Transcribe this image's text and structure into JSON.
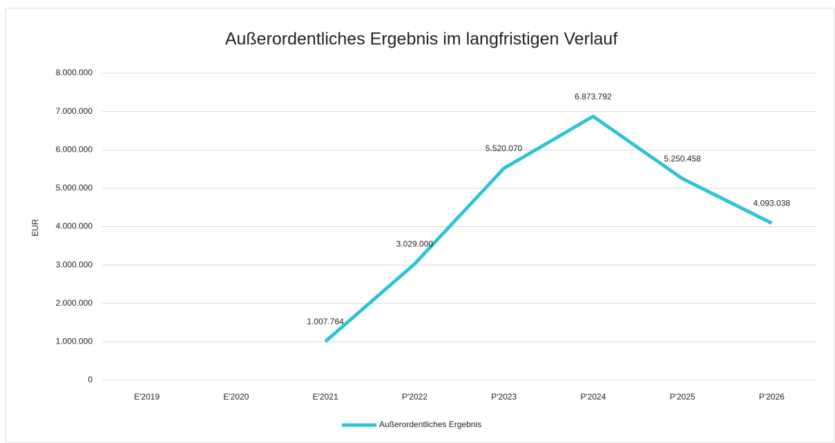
{
  "chart_data": {
    "type": "line",
    "title": "Außerordentliches Ergebnis im langfristigen Verlauf",
    "y_label": "EUR",
    "categories": [
      "E'2019",
      "E'2020",
      "E'2021",
      "P'2022",
      "P'2023",
      "P'2024",
      "P'2025",
      "P'2026"
    ],
    "series": [
      {
        "name": "Außerordentliches Ergebnis",
        "color": "#2ec4d6",
        "values": [
          null,
          null,
          1007764,
          3029000,
          5520070,
          6873792,
          5250458,
          4093038
        ],
        "value_labels": [
          null,
          null,
          "1.007.764",
          "3.029.000",
          "5.520.070",
          "6.873.792",
          "5.250.458",
          "4.093.038"
        ]
      }
    ],
    "ylim": [
      0,
      8000000
    ],
    "yticks": [
      0,
      {
        "value": 1000000,
        "label": "1.000.000"
      },
      {
        "value": 2000000,
        "label": "2.000.000"
      },
      {
        "value": 3000000,
        "label": "3.000.000"
      },
      {
        "value": 4000000,
        "label": "4.000.000"
      },
      {
        "value": 5000000,
        "label": "5.000.000"
      },
      {
        "value": 6000000,
        "label": "6.000.000"
      },
      {
        "value": 7000000,
        "label": "7.000.000"
      },
      {
        "value": 8000000,
        "label": "8.000.000"
      }
    ],
    "grid": true,
    "legend": "bottom"
  }
}
